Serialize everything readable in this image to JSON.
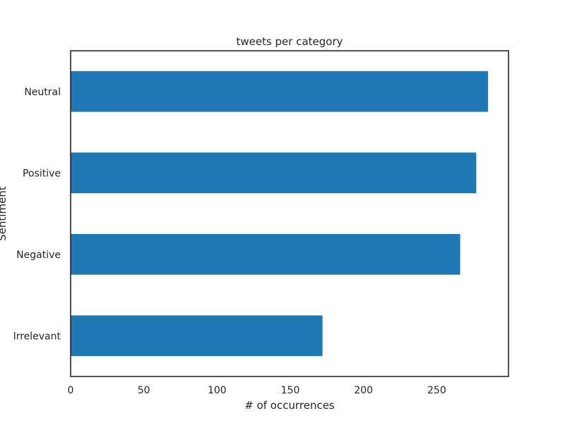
{
  "chart_data": {
    "type": "bar",
    "orientation": "horizontal",
    "title": "tweets per category",
    "xlabel": "# of occurrences",
    "ylabel": "Sentiment",
    "categories": [
      "Neutral",
      "Positive",
      "Negative",
      "Irrelevant"
    ],
    "values": [
      285,
      277,
      266,
      172
    ],
    "xlim": [
      0,
      299
    ],
    "xticks": [
      0,
      50,
      100,
      150,
      200,
      250
    ],
    "bar_color": "#1f77b4",
    "grid": false,
    "legend": "none"
  }
}
